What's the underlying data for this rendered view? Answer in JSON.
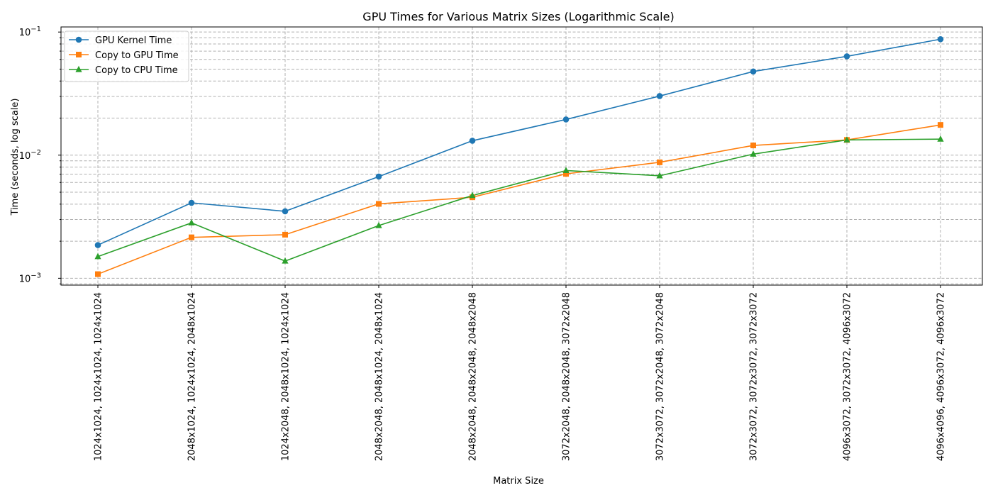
{
  "chart_data": {
    "type": "line",
    "title": "GPU Times for Various Matrix Sizes (Logarithmic Scale)",
    "xlabel": "Matrix Size",
    "ylabel": "Time (seconds, log scale)",
    "yscale": "log",
    "ylim": [
      0.00088,
      0.11
    ],
    "yticks": [
      {
        "value": 0.001,
        "base": "10",
        "exp": "−3"
      },
      {
        "value": 0.01,
        "base": "10",
        "exp": "−2"
      },
      {
        "value": 0.1,
        "base": "10",
        "exp": "−1"
      }
    ],
    "grid": true,
    "legend_position": "top-left",
    "categories": [
      "1024x1024, 1024x1024, 1024x1024",
      "2048x1024, 1024x1024, 2048x1024",
      "1024x2048, 2048x1024, 1024x1024",
      "2048x2048, 2048x1024, 2048x1024",
      "2048x2048, 2048x2048, 2048x2048",
      "3072x2048, 2048x2048, 3072x2048",
      "3072x3072, 3072x2048, 3072x2048",
      "3072x3072, 3072x3072, 3072x3072",
      "4096x3072, 3072x3072, 4096x3072",
      "4096x4096, 4096x3072, 4096x3072"
    ],
    "series": [
      {
        "name": "GPU Kernel Time",
        "color": "#1f77b4",
        "marker": "circle",
        "values": [
          0.00186,
          0.0041,
          0.0035,
          0.0067,
          0.0131,
          0.0195,
          0.0302,
          0.0478,
          0.0635,
          0.0875
        ]
      },
      {
        "name": "Copy to GPU Time",
        "color": "#ff7f0e",
        "marker": "square",
        "values": [
          0.00108,
          0.00215,
          0.00226,
          0.00402,
          0.00455,
          0.00705,
          0.00875,
          0.012,
          0.0133,
          0.0176
        ]
      },
      {
        "name": "Copy to CPU Time",
        "color": "#2ca02c",
        "marker": "triangle",
        "values": [
          0.0015,
          0.00282,
          0.00138,
          0.00268,
          0.0047,
          0.0075,
          0.0068,
          0.0102,
          0.0133,
          0.0135
        ]
      }
    ]
  }
}
